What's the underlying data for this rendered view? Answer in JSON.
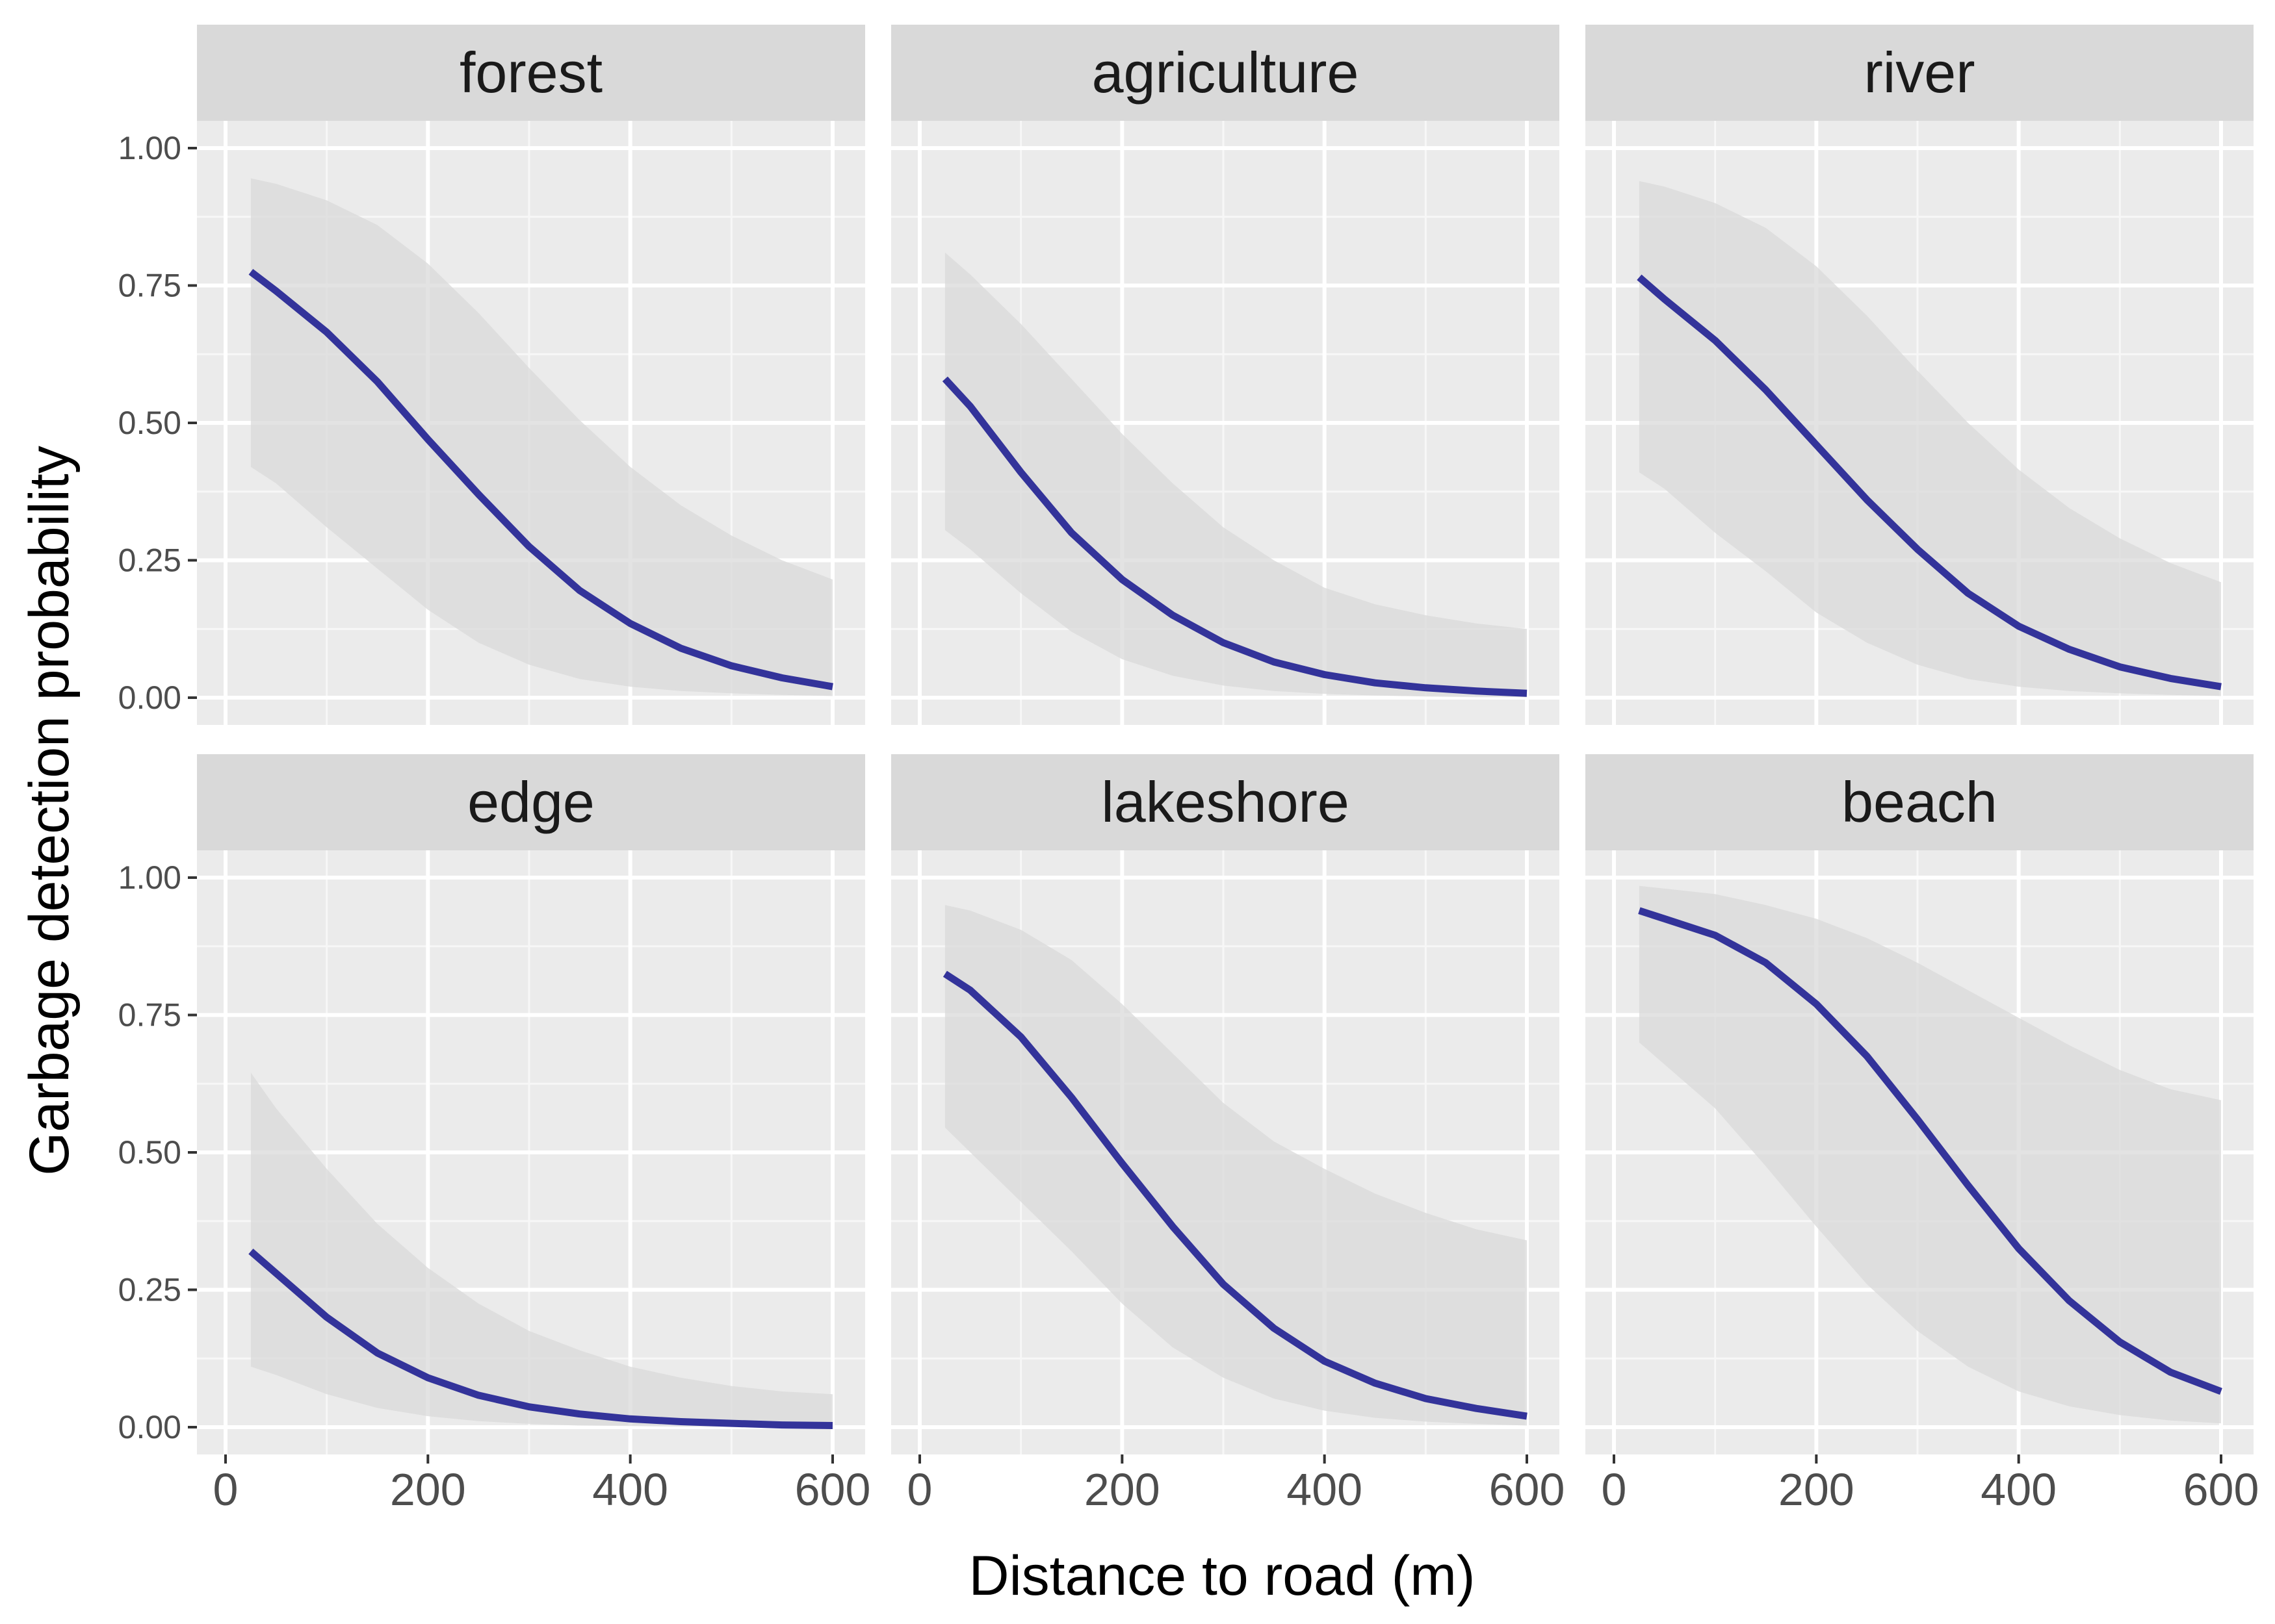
{
  "chart_data": {
    "type": "line",
    "xlabel": "Distance to road (m)",
    "ylabel": "Garbage detection probability",
    "xlim": [
      0,
      600
    ],
    "ylim": [
      0,
      1
    ],
    "x_ticks": [
      0,
      200,
      400,
      600
    ],
    "y_ticks": [
      0,
      0.25,
      0.5,
      0.75,
      1
    ],
    "y_tick_labels": [
      "0.00",
      "0.25",
      "0.50",
      "0.75",
      "1.00"
    ],
    "grid": true,
    "facet_layout": "2 rows x 3 columns",
    "colors": {
      "line": "#33339a",
      "ribbon": "#d9d9d9",
      "panel": "#ebebeb",
      "strip": "#d9d9d9",
      "grid": "#ffffff"
    },
    "facets": [
      {
        "label": "forest",
        "x": [
          25,
          50,
          100,
          150,
          200,
          250,
          300,
          350,
          400,
          450,
          500,
          550,
          600
        ],
        "y": [
          0.775,
          0.74,
          0.665,
          0.575,
          0.47,
          0.37,
          0.275,
          0.195,
          0.135,
          0.09,
          0.058,
          0.036,
          0.02
        ],
        "lower": [
          0.42,
          0.39,
          0.31,
          0.235,
          0.16,
          0.1,
          0.06,
          0.034,
          0.02,
          0.012,
          0.008,
          0.005,
          0.003
        ],
        "upper": [
          0.945,
          0.935,
          0.905,
          0.86,
          0.79,
          0.7,
          0.6,
          0.505,
          0.42,
          0.35,
          0.295,
          0.25,
          0.215
        ]
      },
      {
        "label": "agriculture",
        "x": [
          25,
          50,
          100,
          150,
          200,
          250,
          300,
          350,
          400,
          450,
          500,
          550,
          600
        ],
        "y": [
          0.58,
          0.53,
          0.41,
          0.3,
          0.215,
          0.15,
          0.1,
          0.065,
          0.042,
          0.027,
          0.018,
          0.012,
          0.008
        ],
        "lower": [
          0.305,
          0.27,
          0.19,
          0.12,
          0.07,
          0.04,
          0.022,
          0.012,
          0.007,
          0.004,
          0.002,
          0.001,
          0.001
        ],
        "upper": [
          0.81,
          0.77,
          0.68,
          0.58,
          0.48,
          0.39,
          0.31,
          0.25,
          0.2,
          0.17,
          0.15,
          0.135,
          0.125
        ]
      },
      {
        "label": "river",
        "x": [
          25,
          50,
          100,
          150,
          200,
          250,
          300,
          350,
          400,
          450,
          500,
          550,
          600
        ],
        "y": [
          0.765,
          0.725,
          0.65,
          0.56,
          0.46,
          0.36,
          0.27,
          0.19,
          0.13,
          0.088,
          0.056,
          0.035,
          0.02
        ],
        "lower": [
          0.41,
          0.38,
          0.3,
          0.23,
          0.155,
          0.1,
          0.06,
          0.034,
          0.02,
          0.012,
          0.008,
          0.005,
          0.003
        ],
        "upper": [
          0.94,
          0.93,
          0.9,
          0.855,
          0.785,
          0.695,
          0.595,
          0.5,
          0.415,
          0.345,
          0.29,
          0.245,
          0.21
        ]
      },
      {
        "label": "edge",
        "x": [
          25,
          50,
          100,
          150,
          200,
          250,
          300,
          350,
          400,
          450,
          500,
          550,
          600
        ],
        "y": [
          0.32,
          0.28,
          0.2,
          0.135,
          0.09,
          0.058,
          0.037,
          0.024,
          0.015,
          0.01,
          0.007,
          0.004,
          0.003
        ],
        "lower": [
          0.11,
          0.095,
          0.06,
          0.035,
          0.02,
          0.011,
          0.006,
          0.003,
          0.002,
          0.001,
          0.001,
          0.0,
          0.0
        ],
        "upper": [
          0.645,
          0.58,
          0.47,
          0.37,
          0.29,
          0.225,
          0.175,
          0.14,
          0.11,
          0.09,
          0.075,
          0.065,
          0.06
        ]
      },
      {
        "label": "lakeshore",
        "x": [
          25,
          50,
          100,
          150,
          200,
          250,
          300,
          350,
          400,
          450,
          500,
          550,
          600
        ],
        "y": [
          0.825,
          0.795,
          0.71,
          0.6,
          0.48,
          0.365,
          0.26,
          0.18,
          0.12,
          0.08,
          0.052,
          0.034,
          0.02
        ],
        "lower": [
          0.545,
          0.5,
          0.41,
          0.32,
          0.225,
          0.145,
          0.09,
          0.052,
          0.03,
          0.017,
          0.01,
          0.006,
          0.003
        ],
        "upper": [
          0.95,
          0.94,
          0.905,
          0.85,
          0.77,
          0.68,
          0.59,
          0.52,
          0.47,
          0.425,
          0.39,
          0.36,
          0.34
        ]
      },
      {
        "label": "beach",
        "x": [
          25,
          50,
          100,
          150,
          200,
          250,
          300,
          350,
          400,
          450,
          500,
          550,
          600
        ],
        "y": [
          0.94,
          0.925,
          0.895,
          0.845,
          0.77,
          0.675,
          0.56,
          0.44,
          0.325,
          0.23,
          0.155,
          0.1,
          0.065
        ],
        "lower": [
          0.7,
          0.66,
          0.58,
          0.475,
          0.365,
          0.26,
          0.175,
          0.11,
          0.065,
          0.038,
          0.022,
          0.012,
          0.007
        ],
        "upper": [
          0.985,
          0.98,
          0.97,
          0.95,
          0.925,
          0.89,
          0.845,
          0.795,
          0.745,
          0.695,
          0.65,
          0.615,
          0.595
        ]
      }
    ]
  }
}
